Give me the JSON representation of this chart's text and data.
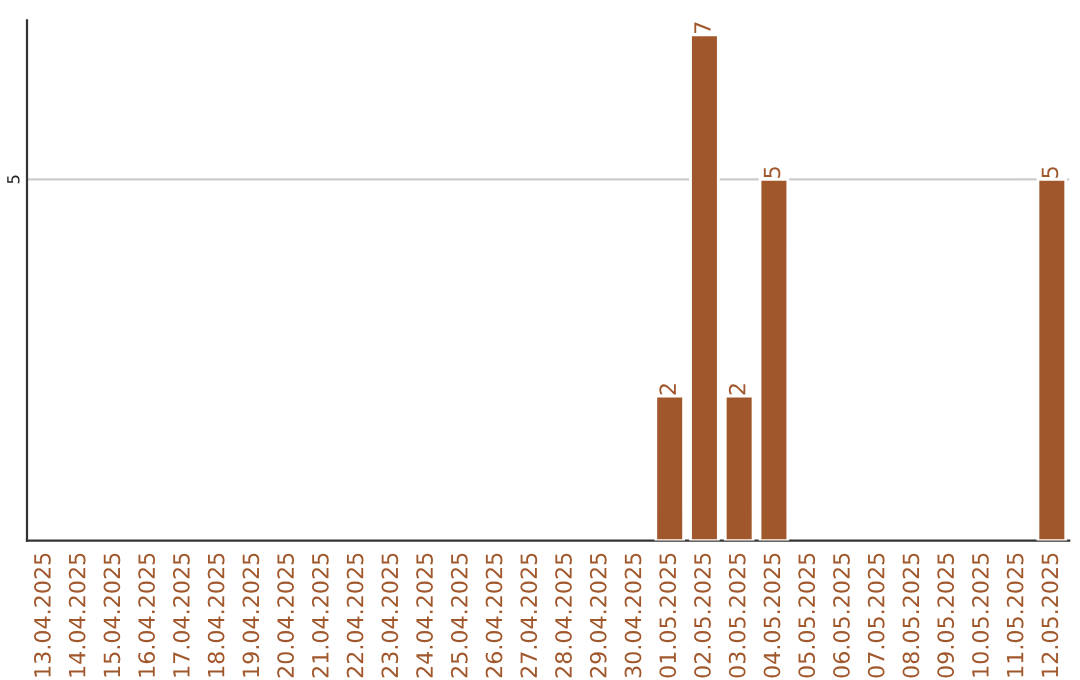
{
  "chart_data": {
    "type": "bar",
    "categories": [
      "13.04.2025",
      "14.04.2025",
      "15.04.2025",
      "16.04.2025",
      "17.04.2025",
      "18.04.2025",
      "19.04.2025",
      "20.04.2025",
      "21.04.2025",
      "22.04.2025",
      "23.04.2025",
      "24.04.2025",
      "25.04.2025",
      "26.04.2025",
      "27.04.2025",
      "28.04.2025",
      "29.04.2025",
      "30.04.2025",
      "01.05.2025",
      "02.05.2025",
      "03.05.2025",
      "04.05.2025",
      "05.05.2025",
      "06.05.2025",
      "07.05.2025",
      "08.05.2025",
      "09.05.2025",
      "10.05.2025",
      "11.05.2025",
      "12.05.2025"
    ],
    "values": [
      null,
      null,
      null,
      null,
      null,
      null,
      null,
      null,
      null,
      null,
      null,
      null,
      null,
      null,
      null,
      null,
      null,
      null,
      2,
      7,
      2,
      5,
      null,
      null,
      null,
      null,
      null,
      null,
      null,
      5
    ],
    "ref_lines": [
      {
        "axis": "y",
        "value": 5,
        "label": "5",
        "color": "#cccccc"
      }
    ],
    "value_labels": [
      null,
      null,
      null,
      null,
      null,
      null,
      null,
      null,
      null,
      null,
      null,
      null,
      null,
      null,
      null,
      null,
      null,
      null,
      "2",
      "7",
      "2",
      "5",
      null,
      null,
      null,
      null,
      null,
      null,
      null,
      "5"
    ],
    "color": "#a0572b",
    "ylim": [
      0,
      7.2
    ],
    "grid": false
  }
}
